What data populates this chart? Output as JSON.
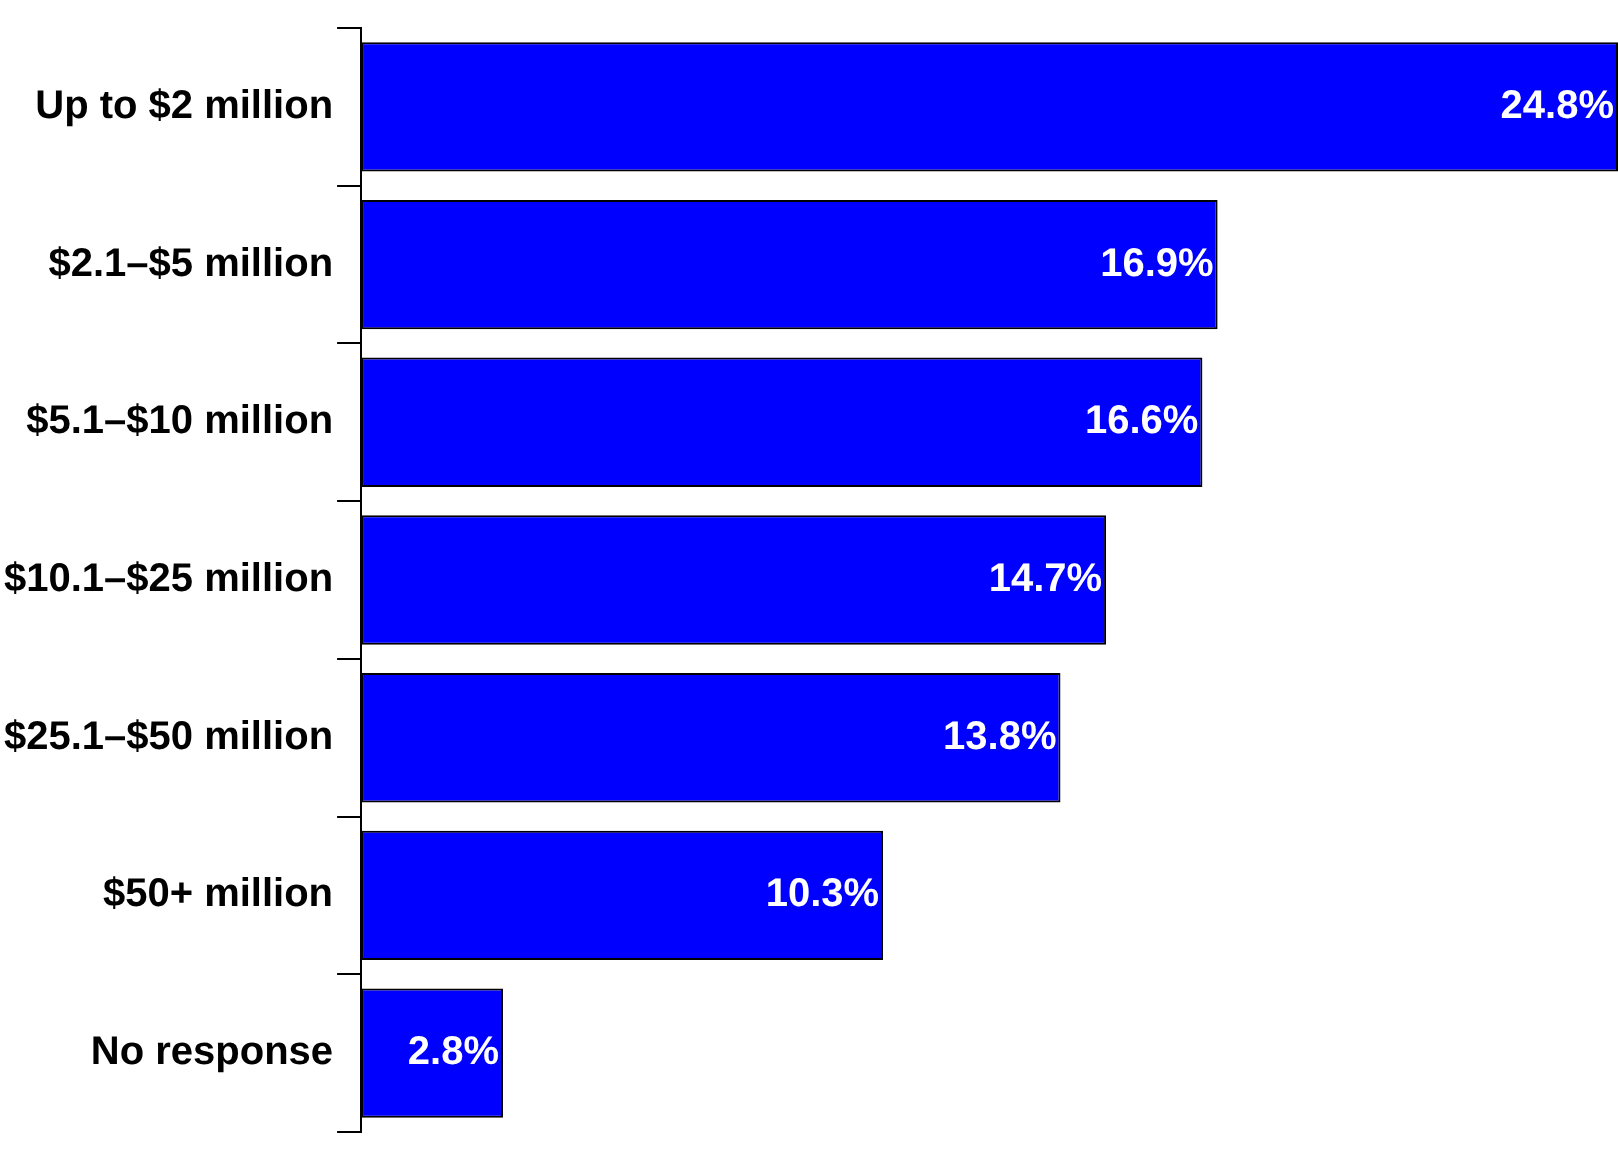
{
  "chart_data": {
    "type": "bar",
    "orientation": "horizontal",
    "categories": [
      "Up to $2 million",
      "$2.1–$5 million",
      "$5.1–$10 million",
      "$10.1–$25 million",
      "$25.1–$50 million",
      "$50+ million",
      "No response"
    ],
    "values": [
      24.8,
      16.9,
      16.6,
      14.7,
      13.8,
      10.3,
      2.8
    ],
    "value_labels": [
      "24.8%",
      "16.9%",
      "16.6%",
      "14.7%",
      "13.8%",
      "10.3%",
      "2.8%"
    ],
    "color": "#0000ff",
    "legend": false,
    "tick_labels": "y"
  }
}
